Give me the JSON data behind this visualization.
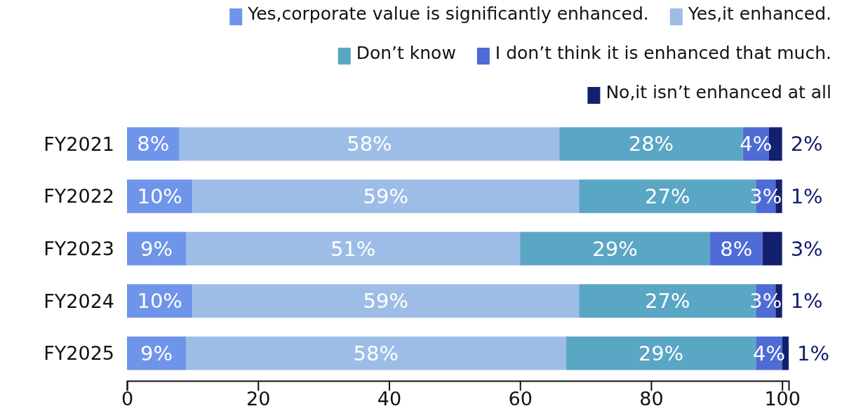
{
  "chart_data": {
    "type": "bar",
    "orientation": "horizontal",
    "stacked": true,
    "categories": [
      "FY2021",
      "FY2022",
      "FY2023",
      "FY2024",
      "FY2025"
    ],
    "series": [
      {
        "name": "Yes,corporate value is significantly enhanced.",
        "color": "#6f95ea",
        "values": [
          8,
          10,
          9,
          10,
          9
        ],
        "value_labels": [
          "8%",
          "10%",
          "9%",
          "10%",
          "9%"
        ]
      },
      {
        "name": "Yes,it enhanced.",
        "color": "#9dbde6",
        "values": [
          58,
          59,
          51,
          59,
          58
        ],
        "value_labels": [
          "58%",
          "59%",
          "51%",
          "59%",
          "58%"
        ]
      },
      {
        "name": "Don’t know",
        "color": "#5aa6c5",
        "values": [
          28,
          27,
          29,
          27,
          29
        ],
        "value_labels": [
          "28%",
          "27%",
          "29%",
          "27%",
          "29%"
        ]
      },
      {
        "name": "I don’t think it is enhanced that much.",
        "color": "#4f6bd6",
        "values": [
          4,
          3,
          8,
          3,
          4
        ],
        "value_labels": [
          "4%",
          "3%",
          "8%",
          "3%",
          "4%"
        ]
      },
      {
        "name": "No,it isn’t enhanced at all",
        "color": "#13206e",
        "values": [
          2,
          1,
          3,
          1,
          1
        ],
        "value_labels": [
          "2%",
          "1%",
          "3%",
          "1%",
          "1%"
        ]
      }
    ],
    "xlim": [
      0,
      101
    ],
    "xticks": [
      0,
      20,
      40,
      60,
      80,
      100
    ],
    "legend": "top right"
  }
}
